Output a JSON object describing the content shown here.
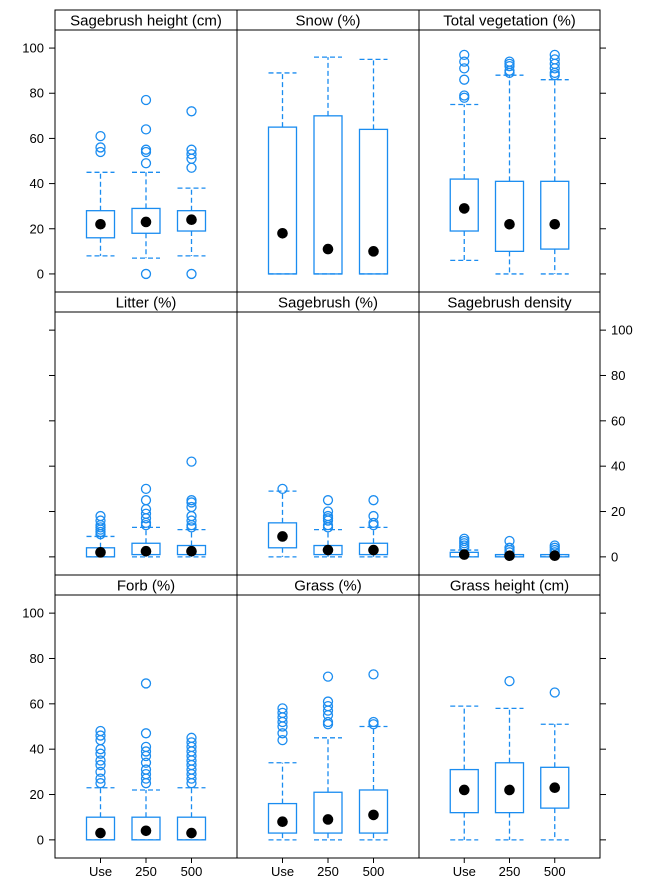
{
  "colors": {
    "box": "#1a8cf0",
    "median": "#000000",
    "frame": "#000000",
    "background": "#ffffff"
  },
  "chart_data": {
    "type": "box",
    "categories": [
      "Use",
      "250",
      "500"
    ],
    "ylim": [
      -8,
      108
    ],
    "yticks": [
      0,
      20,
      40,
      60,
      80,
      100
    ],
    "grid": false,
    "panels": [
      {
        "title": "Sagebrush height (cm)",
        "boxes": [
          {
            "category": "Use",
            "q1": 16,
            "median": 22,
            "q3": 28,
            "whisker_low": 8,
            "whisker_high": 45,
            "outliers": [
              54,
              56,
              61
            ]
          },
          {
            "category": "250",
            "q1": 18,
            "median": 23,
            "q3": 29,
            "whisker_low": 7,
            "whisker_high": 45,
            "outliers": [
              0,
              49,
              54,
              55,
              64,
              77
            ]
          },
          {
            "category": "500",
            "q1": 19,
            "median": 24,
            "q3": 28,
            "whisker_low": 8,
            "whisker_high": 38,
            "outliers": [
              0,
              47,
              51,
              53,
              55,
              72
            ]
          }
        ]
      },
      {
        "title": "Snow (%)",
        "boxes": [
          {
            "category": "Use",
            "q1": 0,
            "median": 18,
            "q3": 65,
            "whisker_low": 0,
            "whisker_high": 89,
            "outliers": []
          },
          {
            "category": "250",
            "q1": 0,
            "median": 11,
            "q3": 70,
            "whisker_low": 0,
            "whisker_high": 96,
            "outliers": []
          },
          {
            "category": "500",
            "q1": 0,
            "median": 10,
            "q3": 64,
            "whisker_low": 0,
            "whisker_high": 95,
            "outliers": []
          }
        ]
      },
      {
        "title": "Total vegetation (%)",
        "boxes": [
          {
            "category": "Use",
            "q1": 19,
            "median": 29,
            "q3": 42,
            "whisker_low": 6,
            "whisker_high": 75,
            "outliers": [
              78,
              79,
              86,
              91,
              94,
              97
            ]
          },
          {
            "category": "250",
            "q1": 10,
            "median": 22,
            "q3": 41,
            "whisker_low": 0,
            "whisker_high": 88,
            "outliers": [
              89,
              90,
              92,
              93,
              94
            ]
          },
          {
            "category": "500",
            "q1": 11,
            "median": 22,
            "q3": 41,
            "whisker_low": 0,
            "whisker_high": 86,
            "outliers": [
              88,
              89,
              91,
              93,
              95,
              97
            ]
          }
        ]
      },
      {
        "title": "Litter (%)",
        "boxes": [
          {
            "category": "Use",
            "q1": 0,
            "median": 2,
            "q3": 4,
            "whisker_low": 0,
            "whisker_high": 9,
            "outliers": [
              10,
              11,
              12,
              13,
              14,
              16,
              18
            ]
          },
          {
            "category": "250",
            "q1": 1,
            "median": 2.5,
            "q3": 6,
            "whisker_low": 0,
            "whisker_high": 13,
            "outliers": [
              14,
              15,
              17,
              19,
              21,
              25,
              30
            ]
          },
          {
            "category": "500",
            "q1": 1,
            "median": 2.5,
            "q3": 5,
            "whisker_low": 0,
            "whisker_high": 12,
            "outliers": [
              13,
              14,
              16,
              18,
              22,
              24,
              25,
              42
            ]
          }
        ]
      },
      {
        "title": "Sagebrush (%)",
        "boxes": [
          {
            "category": "Use",
            "q1": 4,
            "median": 9,
            "q3": 15,
            "whisker_low": 0,
            "whisker_high": 29,
            "outliers": [
              30
            ]
          },
          {
            "category": "250",
            "q1": 1,
            "median": 3,
            "q3": 5,
            "whisker_low": 0,
            "whisker_high": 12,
            "outliers": [
              13,
              14,
              16,
              17,
              18,
              20,
              25
            ]
          },
          {
            "category": "500",
            "q1": 1,
            "median": 3,
            "q3": 6,
            "whisker_low": 0,
            "whisker_high": 13,
            "outliers": [
              14,
              15,
              18,
              25
            ]
          }
        ]
      },
      {
        "title": "Sagebrush density",
        "boxes": [
          {
            "category": "Use",
            "q1": 0,
            "median": 1,
            "q3": 2,
            "whisker_low": 0,
            "whisker_high": 3,
            "outliers": [
              4,
              5,
              6,
              7,
              8
            ]
          },
          {
            "category": "250",
            "q1": 0,
            "median": 0.5,
            "q3": 1,
            "whisker_low": 0,
            "whisker_high": 1,
            "outliers": [
              2,
              3,
              4,
              7
            ]
          },
          {
            "category": "500",
            "q1": 0,
            "median": 0.5,
            "q3": 1,
            "whisker_low": 0,
            "whisker_high": 1,
            "outliers": [
              2,
              3,
              4,
              5
            ]
          }
        ]
      },
      {
        "title": "Forb (%)",
        "boxes": [
          {
            "category": "Use",
            "q1": 0,
            "median": 3,
            "q3": 10,
            "whisker_low": 0,
            "whisker_high": 23,
            "outliers": [
              25,
              27,
              30,
              33,
              35,
              38,
              40,
              44,
              46,
              48
            ]
          },
          {
            "category": "250",
            "q1": 0,
            "median": 4,
            "q3": 10,
            "whisker_low": 0,
            "whisker_high": 22,
            "outliers": [
              25,
              27,
              29,
              31,
              34,
              37,
              39,
              41,
              47,
              69
            ]
          },
          {
            "category": "500",
            "q1": 0,
            "median": 3,
            "q3": 10,
            "whisker_low": 0,
            "whisker_high": 23,
            "outliers": [
              25,
              27,
              29,
              31,
              33,
              35,
              37,
              39,
              41,
              43,
              45
            ]
          }
        ]
      },
      {
        "title": "Grass (%)",
        "boxes": [
          {
            "category": "Use",
            "q1": 3,
            "median": 8,
            "q3": 16,
            "whisker_low": 0,
            "whisker_high": 34,
            "outliers": [
              44,
              47,
              50,
              52,
              54,
              56,
              58
            ]
          },
          {
            "category": "250",
            "q1": 3,
            "median": 9,
            "q3": 21,
            "whisker_low": 0,
            "whisker_high": 45,
            "outliers": [
              51,
              52,
              55,
              57,
              59,
              61,
              72
            ]
          },
          {
            "category": "500",
            "q1": 3,
            "median": 11,
            "q3": 22,
            "whisker_low": 0,
            "whisker_high": 50,
            "outliers": [
              51,
              52,
              73
            ]
          }
        ]
      },
      {
        "title": "Grass height (cm)",
        "boxes": [
          {
            "category": "Use",
            "q1": 12,
            "median": 22,
            "q3": 31,
            "whisker_low": 0,
            "whisker_high": 59,
            "outliers": []
          },
          {
            "category": "250",
            "q1": 12,
            "median": 22,
            "q3": 34,
            "whisker_low": 0,
            "whisker_high": 58,
            "outliers": [
              70
            ]
          },
          {
            "category": "500",
            "q1": 14,
            "median": 23,
            "q3": 32,
            "whisker_low": 0,
            "whisker_high": 51,
            "outliers": [
              65
            ]
          }
        ]
      }
    ]
  }
}
